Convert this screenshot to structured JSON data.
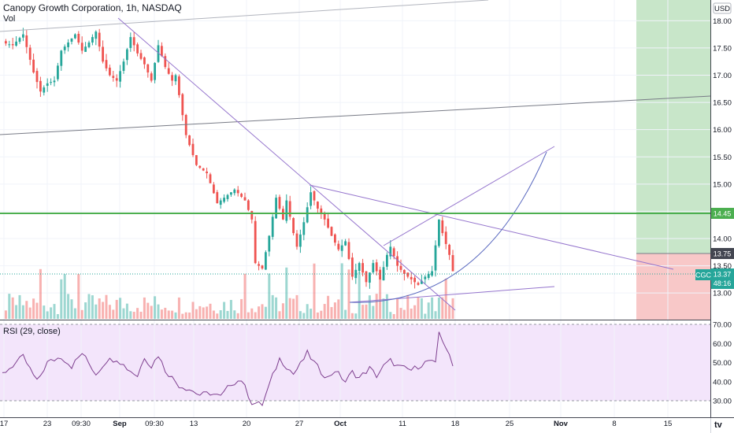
{
  "header": {
    "title": "Canopy Growth Corporation, 1h, NASDAQ",
    "volume_label": "Vol"
  },
  "rsi_label": "RSI (29, close)",
  "currency": "USD",
  "price_axis": {
    "ticks": [
      "18.00",
      "17.50",
      "17.00",
      "16.50",
      "16.00",
      "15.50",
      "15.00",
      "14.50",
      "14.00",
      "13.50",
      "13.00"
    ],
    "tick_values": [
      18.0,
      17.5,
      17.0,
      16.5,
      16.0,
      15.5,
      15.0,
      14.5,
      14.0,
      13.5,
      13.0
    ]
  },
  "rsi_axis": {
    "ticks": [
      "70.00",
      "60.00",
      "50.00",
      "40.00",
      "30.00"
    ],
    "tick_values": [
      70,
      60,
      50,
      40,
      30
    ]
  },
  "time_axis": {
    "labels": [
      "17",
      "23",
      "09:30",
      "Sep",
      "09:30",
      "13",
      "20",
      "27",
      "Oct",
      "11",
      "18",
      "25",
      "Nov",
      "8",
      "15"
    ],
    "bold": [
      "Sep",
      "Oct",
      "Nov"
    ]
  },
  "price_labels": {
    "resistance": "14.45",
    "target": "13.75",
    "last_symbol": "CGC",
    "last_price": "13.37",
    "countdown": "48:16"
  },
  "colors": {
    "up": "#26a69a",
    "down": "#ef5350",
    "resistance": "#4caf50",
    "trend_purple": "#9575cd",
    "profit_zone": "#c8e6c9",
    "loss_zone": "#f8c8c8",
    "rsi_bg": "#f3e5fb",
    "rsi_line": "#7e3f8f"
  },
  "chart_data": {
    "type": "candlestick",
    "title": "Canopy Growth Corporation, 1h, NASDAQ",
    "symbol": "CGC",
    "interval": "1h",
    "exchange": "NASDAQ",
    "ylim": [
      12.6,
      18.3
    ],
    "price_anchor_path": [
      [
        0,
        17.6
      ],
      [
        3,
        17.55
      ],
      [
        6,
        17.75
      ],
      [
        9,
        17.05
      ],
      [
        11,
        16.7
      ],
      [
        13,
        16.85
      ],
      [
        15,
        16.9
      ],
      [
        17,
        17.45
      ],
      [
        19,
        17.6
      ],
      [
        21,
        17.75
      ],
      [
        23,
        17.45
      ],
      [
        25,
        17.6
      ],
      [
        27,
        17.8
      ],
      [
        29,
        17.25
      ],
      [
        31,
        17.0
      ],
      [
        33,
        16.9
      ],
      [
        35,
        17.25
      ],
      [
        37,
        17.7
      ],
      [
        39,
        17.4
      ],
      [
        41,
        17.2
      ],
      [
        43,
        16.9
      ],
      [
        45,
        17.55
      ],
      [
        47,
        17.15
      ],
      [
        49,
        16.9
      ],
      [
        50,
        17.0
      ],
      [
        53,
        15.9
      ],
      [
        56,
        15.35
      ],
      [
        59,
        15.2
      ],
      [
        62,
        14.65
      ],
      [
        64,
        14.75
      ],
      [
        67,
        14.9
      ],
      [
        70,
        14.7
      ],
      [
        72,
        14.35
      ],
      [
        73,
        13.55
      ],
      [
        75,
        13.45
      ],
      [
        77,
        14.05
      ],
      [
        79,
        14.75
      ],
      [
        81,
        14.35
      ],
      [
        82,
        14.7
      ],
      [
        84,
        14.1
      ],
      [
        85,
        13.85
      ],
      [
        87,
        14.3
      ],
      [
        89,
        14.85
      ],
      [
        91,
        14.55
      ],
      [
        93,
        14.35
      ],
      [
        95,
        14.05
      ],
      [
        97,
        13.8
      ],
      [
        99,
        13.95
      ],
      [
        101,
        13.3
      ],
      [
        103,
        13.55
      ],
      [
        105,
        13.2
      ],
      [
        107,
        13.55
      ],
      [
        109,
        13.25
      ],
      [
        111,
        13.7
      ],
      [
        112,
        13.85
      ],
      [
        114,
        13.5
      ],
      [
        116,
        13.35
      ],
      [
        118,
        13.25
      ],
      [
        120,
        13.15
      ],
      [
        122,
        13.3
      ],
      [
        124,
        13.4
      ],
      [
        126,
        14.35
      ],
      [
        127,
        14.1
      ],
      [
        129,
        13.7
      ],
      [
        130,
        13.4
      ]
    ],
    "volume_profile": "hourly volume bars along the bottom of the price pane, green for up candles and red for down candles",
    "resistance_level": 14.45,
    "trendlines": "purple descending trendlines, ascending channel lines and a rising parabolic arc; gray long-term lines",
    "position_tool": {
      "entry": 13.75,
      "target_zone": "green above entry",
      "stop_zone": "red below entry"
    },
    "last_price": 13.37,
    "rsi": {
      "period": 29,
      "source": "close",
      "ylim": [
        25,
        72
      ],
      "bands": [
        30,
        70
      ],
      "anchor_path": [
        [
          0,
          44
        ],
        [
          6,
          53
        ],
        [
          10,
          40
        ],
        [
          13,
          50
        ],
        [
          17,
          53
        ],
        [
          20,
          48
        ],
        [
          23,
          55
        ],
        [
          27,
          44
        ],
        [
          30,
          51
        ],
        [
          33,
          52
        ],
        [
          36,
          47
        ],
        [
          39,
          43
        ],
        [
          41,
          53
        ],
        [
          43,
          48
        ],
        [
          45,
          54
        ],
        [
          47,
          46
        ],
        [
          49,
          42
        ],
        [
          51,
          38
        ],
        [
          54,
          36
        ],
        [
          57,
          33
        ],
        [
          60,
          34
        ],
        [
          63,
          32
        ],
        [
          66,
          39
        ],
        [
          69,
          41
        ],
        [
          72,
          29
        ],
        [
          75,
          28
        ],
        [
          78,
          43
        ],
        [
          80,
          52
        ],
        [
          82,
          48
        ],
        [
          84,
          44
        ],
        [
          86,
          49
        ],
        [
          88,
          55
        ],
        [
          90,
          50
        ],
        [
          92,
          45
        ],
        [
          94,
          42
        ],
        [
          96,
          46
        ],
        [
          99,
          40
        ],
        [
          101,
          45
        ],
        [
          103,
          42
        ],
        [
          106,
          47
        ],
        [
          108,
          43
        ],
        [
          110,
          48
        ],
        [
          112,
          51
        ],
        [
          114,
          48
        ],
        [
          116,
          47
        ],
        [
          118,
          46
        ],
        [
          120,
          48
        ],
        [
          123,
          51
        ],
        [
          125,
          49
        ],
        [
          126,
          66
        ],
        [
          128,
          58
        ],
        [
          130,
          48
        ]
      ]
    }
  }
}
